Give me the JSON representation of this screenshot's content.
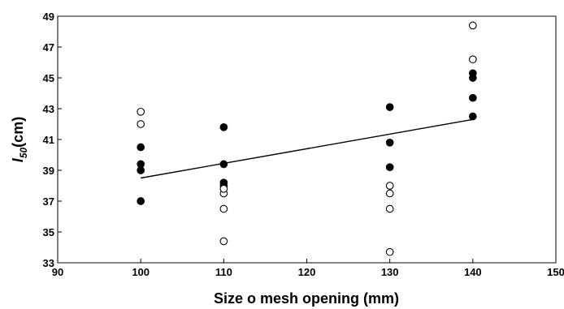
{
  "chart_data": {
    "type": "scatter",
    "title": "",
    "xlabel": "Size o mesh opening (mm)",
    "ylabel_main": "I",
    "ylabel_sub": "50",
    "ylabel_unit": "(cm)",
    "xlim": [
      90,
      150
    ],
    "ylim": [
      33,
      49
    ],
    "xticks": [
      90,
      100,
      110,
      120,
      130,
      140,
      150
    ],
    "yticks": [
      33,
      35,
      37,
      39,
      41,
      43,
      45,
      47,
      49
    ],
    "grid": false,
    "series": [
      {
        "marker": "filled-circle",
        "points": [
          [
            100,
            37.0
          ],
          [
            100,
            39.0
          ],
          [
            100,
            39.4
          ],
          [
            100,
            40.5
          ],
          [
            110,
            38.0
          ],
          [
            110,
            38.2
          ],
          [
            110,
            39.4
          ],
          [
            110,
            41.8
          ],
          [
            130,
            39.2
          ],
          [
            130,
            40.8
          ],
          [
            130,
            43.1
          ],
          [
            140,
            42.5
          ],
          [
            140,
            43.7
          ],
          [
            140,
            45.0
          ],
          [
            140,
            45.3
          ]
        ]
      },
      {
        "marker": "open-circle",
        "points": [
          [
            100,
            42.0
          ],
          [
            100,
            42.8
          ],
          [
            110,
            34.4
          ],
          [
            110,
            36.5
          ],
          [
            110,
            37.5
          ],
          [
            110,
            37.8
          ],
          [
            130,
            33.7
          ],
          [
            130,
            36.5
          ],
          [
            130,
            37.5
          ],
          [
            130,
            38.0
          ],
          [
            140,
            46.2
          ],
          [
            140,
            48.4
          ]
        ]
      }
    ],
    "trendline": {
      "x": [
        100,
        140
      ],
      "y": [
        38.5,
        42.3
      ]
    }
  }
}
